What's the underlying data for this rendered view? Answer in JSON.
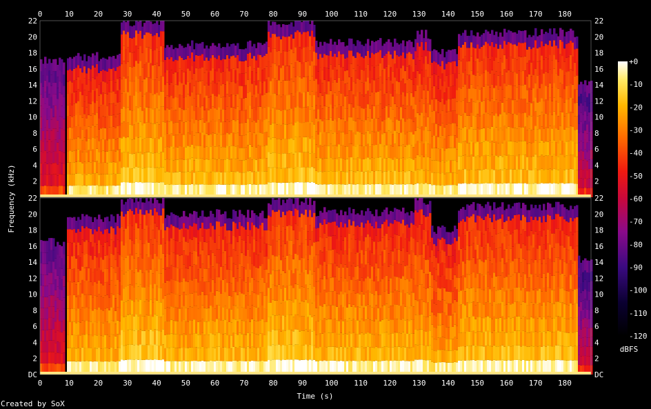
{
  "chart_data": {
    "type": "heatmap",
    "title": "",
    "xlabel": "Time (s)",
    "ylabel": "Frequency (kHz)",
    "xlim": [
      0,
      189
    ],
    "ylim": [
      0,
      22
    ],
    "x_ticks": [
      "0",
      "10",
      "20",
      "30",
      "40",
      "50",
      "60",
      "70",
      "80",
      "90",
      "100",
      "110",
      "120",
      "130",
      "140",
      "150",
      "160",
      "170",
      "180"
    ],
    "y_ticks_top": [
      "22",
      "20",
      "18",
      "16",
      "14",
      "12",
      "10",
      "8",
      "6",
      "4",
      "2"
    ],
    "y_ticks_bottom": [
      "22",
      "20",
      "18",
      "16",
      "14",
      "12",
      "10",
      "8",
      "6",
      "4",
      "2",
      "DC"
    ],
    "colorbar": {
      "label": "dBFS",
      "ticks": [
        "+0",
        "-10",
        "-20",
        "-30",
        "-40",
        "-50",
        "-60",
        "-70",
        "-80",
        "-90",
        "-100",
        "-110",
        "-120"
      ],
      "range": [
        -120,
        0
      ]
    },
    "channels": [
      {
        "segments": [
          {
            "t0": 0,
            "t1": 8,
            "cutoff_khz": 15.5,
            "level": 0.35
          },
          {
            "t0": 8,
            "t1": 9,
            "cutoff_khz": 0,
            "level": 0
          },
          {
            "t0": 9,
            "t1": 27,
            "cutoff_khz": 16.0,
            "level": 0.62
          },
          {
            "t0": 27,
            "t1": 42,
            "cutoff_khz": 20.2,
            "level": 0.66
          },
          {
            "t0": 42,
            "t1": 78,
            "cutoff_khz": 17.5,
            "level": 0.64
          },
          {
            "t0": 78,
            "t1": 94,
            "cutoff_khz": 20.2,
            "level": 0.66
          },
          {
            "t0": 94,
            "t1": 128,
            "cutoff_khz": 17.8,
            "level": 0.64
          },
          {
            "t0": 128,
            "t1": 134,
            "cutoff_khz": 18.8,
            "level": 0.62
          },
          {
            "t0": 134,
            "t1": 143,
            "cutoff_khz": 16.5,
            "level": 0.62
          },
          {
            "t0": 143,
            "t1": 184,
            "cutoff_khz": 19.0,
            "level": 0.65
          },
          {
            "t0": 184,
            "t1": 189,
            "cutoff_khz": 13.0,
            "level": 0.3
          }
        ]
      },
      {
        "segments": [
          {
            "t0": 0,
            "t1": 8,
            "cutoff_khz": 15.0,
            "level": 0.35
          },
          {
            "t0": 8,
            "t1": 9,
            "cutoff_khz": 0,
            "level": 0
          },
          {
            "t0": 9,
            "t1": 27,
            "cutoff_khz": 18.0,
            "level": 0.63
          },
          {
            "t0": 27,
            "t1": 42,
            "cutoff_khz": 20.2,
            "level": 0.67
          },
          {
            "t0": 42,
            "t1": 78,
            "cutoff_khz": 18.5,
            "level": 0.64
          },
          {
            "t0": 78,
            "t1": 94,
            "cutoff_khz": 20.2,
            "level": 0.67
          },
          {
            "t0": 94,
            "t1": 128,
            "cutoff_khz": 18.8,
            "level": 0.64
          },
          {
            "t0": 128,
            "t1": 134,
            "cutoff_khz": 20.0,
            "level": 0.63
          },
          {
            "t0": 134,
            "t1": 143,
            "cutoff_khz": 16.5,
            "level": 0.62
          },
          {
            "t0": 143,
            "t1": 184,
            "cutoff_khz": 19.5,
            "level": 0.65
          },
          {
            "t0": 184,
            "t1": 189,
            "cutoff_khz": 13.0,
            "level": 0.3
          }
        ]
      }
    ]
  },
  "footer": {
    "created_by": "Created by SoX"
  }
}
